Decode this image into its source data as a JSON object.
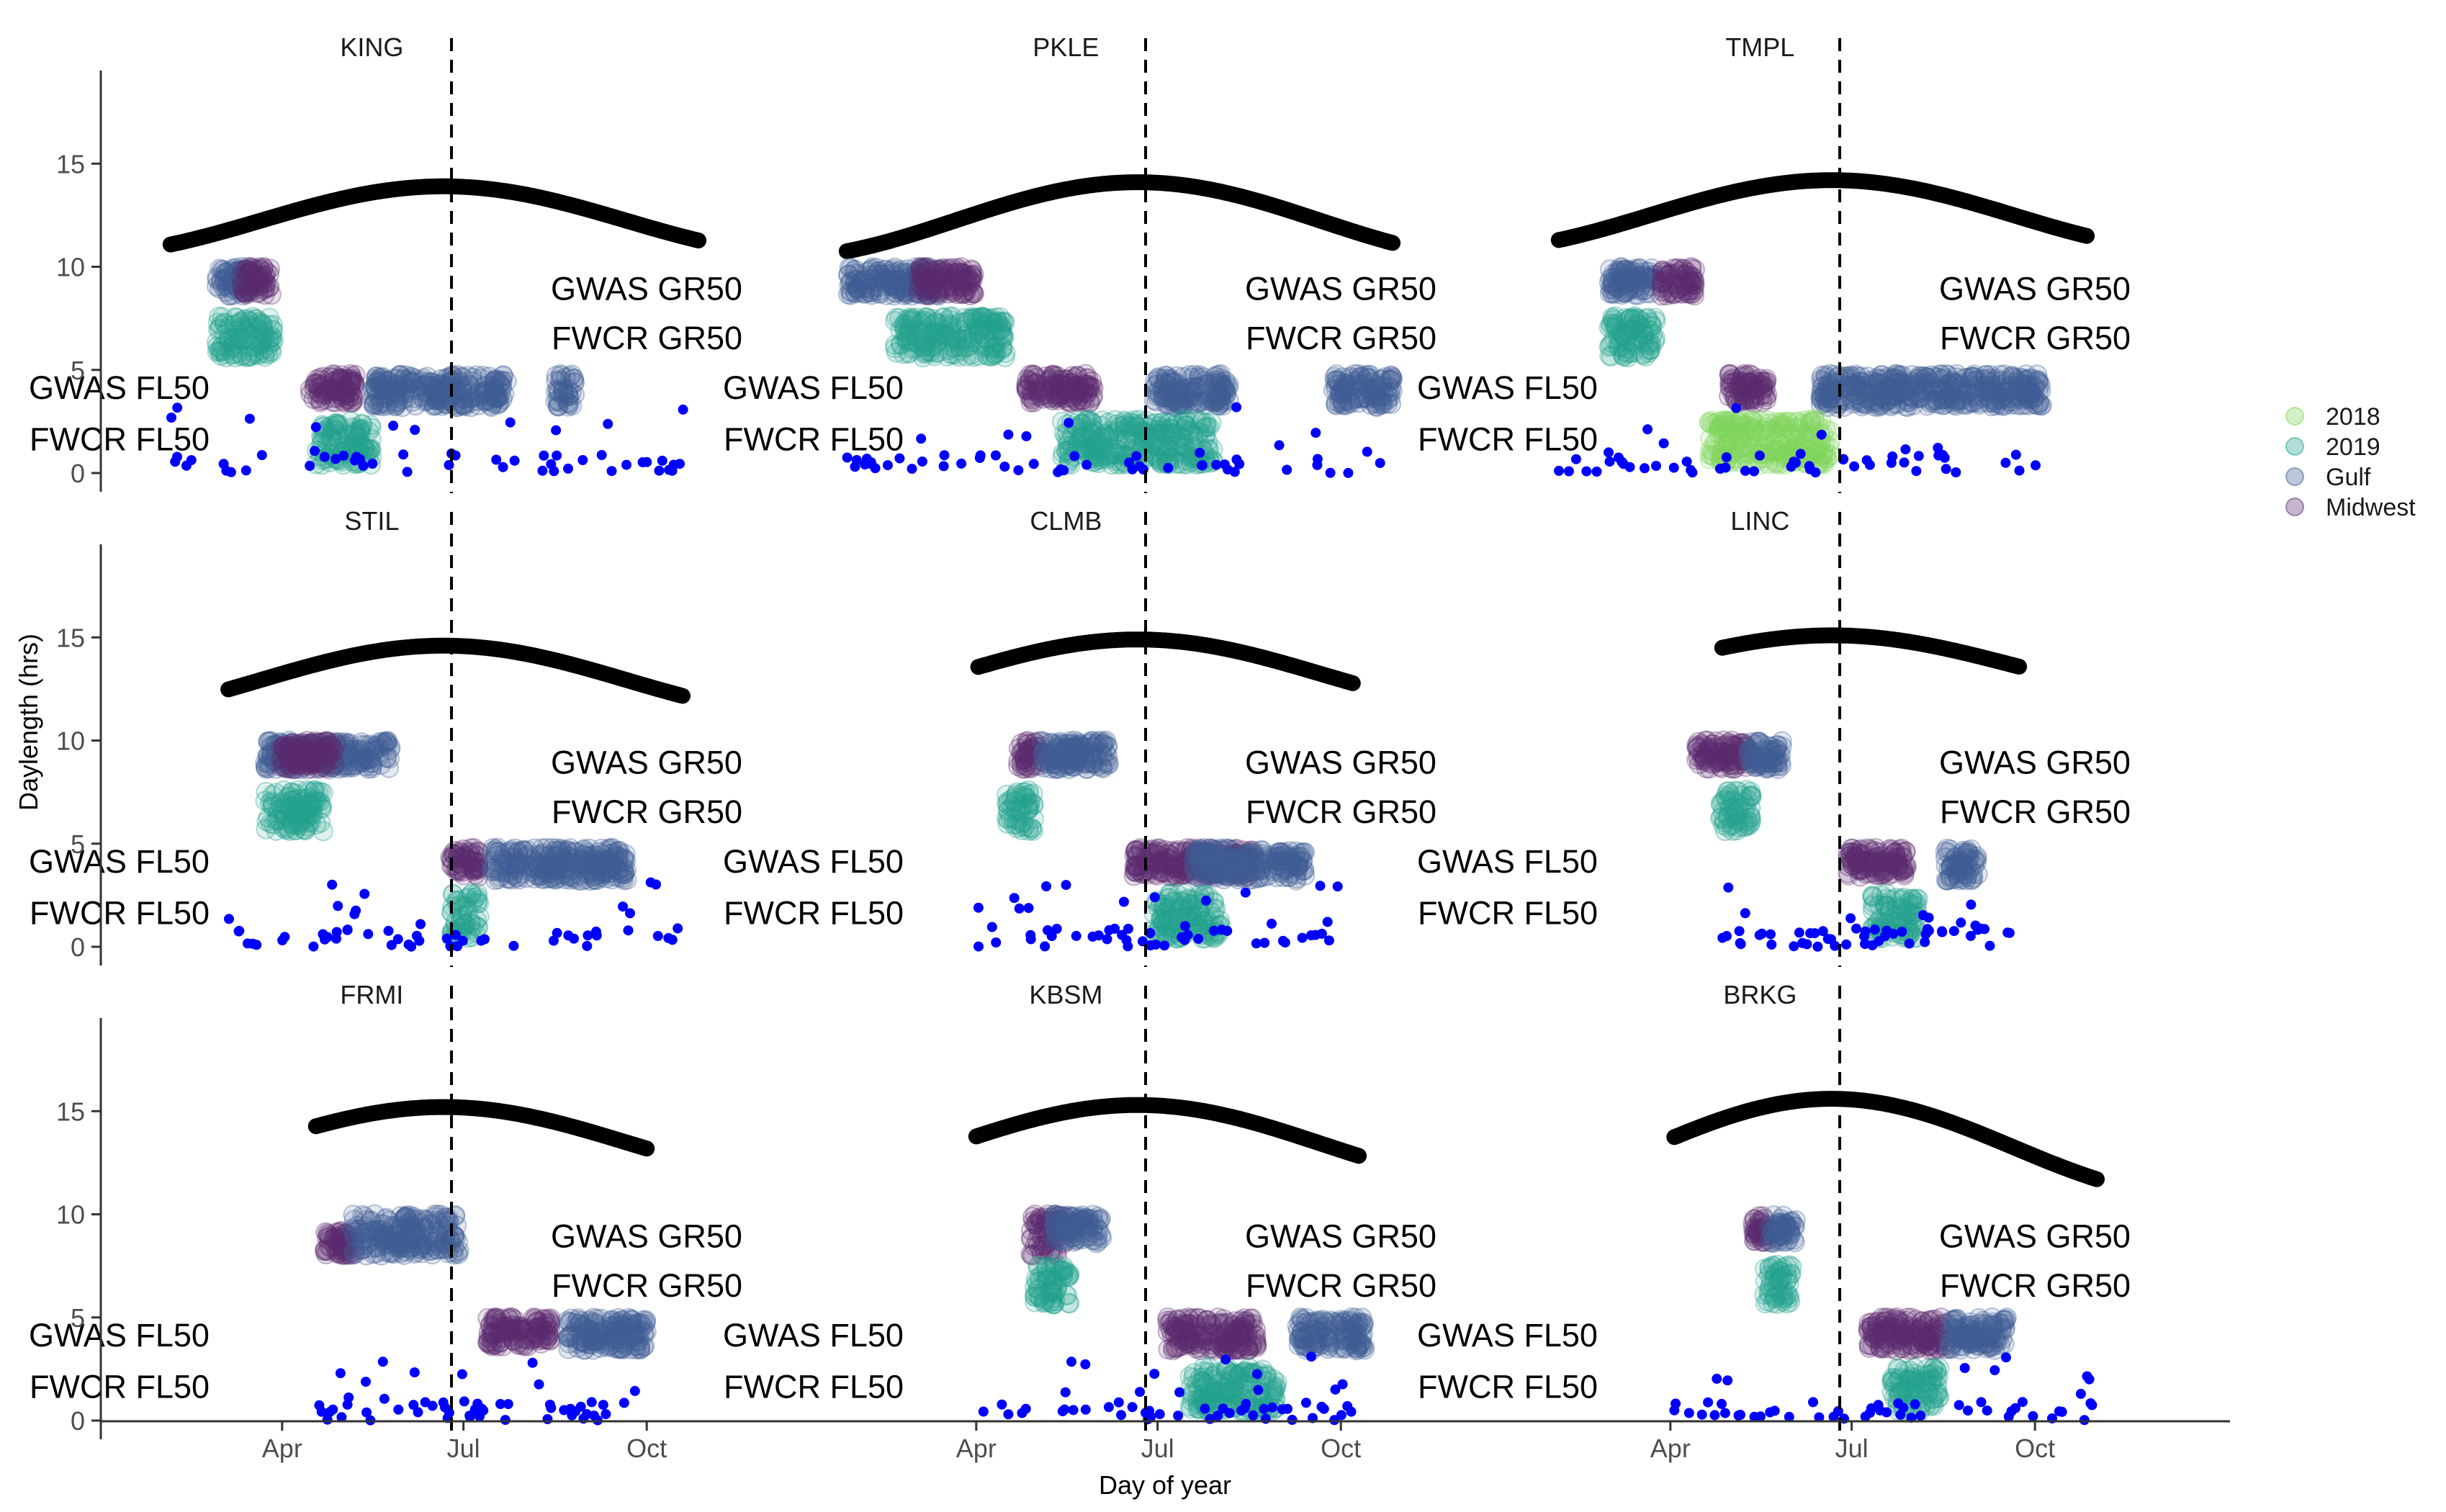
{
  "chart_data": {
    "type": "scatter",
    "xlabel": "Day of year",
    "ylabel": "Daylength (hrs)",
    "x_ticks": [
      "Apr",
      "Jul",
      "Oct"
    ],
    "y_ticks": [
      "0",
      "5",
      "10",
      "15"
    ],
    "ylim": [
      0,
      17
    ],
    "x_tick_days": [
      91,
      182,
      274
    ],
    "xlim": [
      0,
      365
    ],
    "facet_reference_line_day": 176,
    "annotations": [
      "GWAS GR50",
      "FWCR GR50",
      "GWAS FL50",
      "FWCR FL50"
    ],
    "legend": {
      "position": "right",
      "entries": [
        {
          "name": "2018",
          "color": "#7fd75a"
        },
        {
          "name": "2019",
          "color": "#23a08c"
        },
        {
          "name": "Gulf",
          "color": "#3f5f95"
        },
        {
          "name": "Midwest",
          "color": "#5b2a6e"
        }
      ]
    },
    "colors": {
      "daylength_curve": "#000000",
      "daily_points": "#0000ff",
      "reference_line": "#000000"
    },
    "facets": [
      {
        "name": "KING",
        "daylength": {
          "start_day": 35,
          "end_day": 300,
          "min_hrs": 10.6,
          "max_hrs": 13.9
        },
        "gr50": [
          {
            "group": "Gulf",
            "x": [
              58,
              78
            ],
            "y": [
              8.6,
              10.0
            ]
          },
          {
            "group": "Midwest",
            "x": [
              70,
              86
            ],
            "y": [
              8.6,
              10.0
            ]
          },
          {
            "group": "2019",
            "x": [
              58,
              87
            ],
            "y": [
              5.6,
              7.6
            ]
          }
        ],
        "fl50": [
          {
            "group": "Midwest",
            "x": [
              105,
              128
            ],
            "y": [
              3.4,
              4.8
            ]
          },
          {
            "group": "Gulf",
            "x": [
              136,
              204
            ],
            "y": [
              3.2,
              4.8
            ]
          },
          {
            "group": "Gulf",
            "x": [
              228,
              238
            ],
            "y": [
              3.2,
              4.8
            ]
          },
          {
            "group": "2019",
            "x": [
              108,
              136
            ],
            "y": [
              0.4,
              2.6
            ]
          }
        ]
      },
      {
        "name": "PKLE",
        "daylength": {
          "start_day": 26,
          "end_day": 300,
          "min_hrs": 10.4,
          "max_hrs": 14.1
        },
        "gr50": [
          {
            "group": "Gulf",
            "x": [
              26,
              74
            ],
            "y": [
              8.6,
              10.0
            ]
          },
          {
            "group": "Midwest",
            "x": [
              62,
              90
            ],
            "y": [
              8.6,
              10.0
            ]
          },
          {
            "group": "2019",
            "x": [
              50,
              106
            ],
            "y": [
              5.6,
              7.6
            ]
          }
        ],
        "fl50": [
          {
            "group": "Midwest",
            "x": [
              116,
              150
            ],
            "y": [
              3.4,
              4.8
            ]
          },
          {
            "group": "Gulf",
            "x": [
              180,
              218
            ],
            "y": [
              3.2,
              4.8
            ]
          },
          {
            "group": "Gulf",
            "x": [
              270,
              300
            ],
            "y": [
              3.2,
              4.8
            ]
          },
          {
            "group": "2019",
            "x": [
              134,
              210
            ],
            "y": [
              0.4,
              2.6
            ]
          }
        ]
      },
      {
        "name": "TMPL",
        "daylength": {
          "start_day": 35,
          "end_day": 300,
          "min_hrs": 10.8,
          "max_hrs": 14.2
        },
        "gr50": [
          {
            "group": "Gulf",
            "x": [
              60,
              84
            ],
            "y": [
              8.6,
              10.0
            ]
          },
          {
            "group": "Midwest",
            "x": [
              86,
              104
            ],
            "y": [
              8.6,
              10.0
            ]
          },
          {
            "group": "2019",
            "x": [
              60,
              84
            ],
            "y": [
              5.6,
              7.6
            ]
          }
        ],
        "fl50": [
          {
            "group": "Midwest",
            "x": [
              120,
              140
            ],
            "y": [
              3.4,
              4.8
            ]
          },
          {
            "group": "Gulf",
            "x": [
              166,
              278
            ],
            "y": [
              3.2,
              4.8
            ]
          },
          {
            "group": "2018",
            "x": [
              110,
              172
            ],
            "y": [
              0.4,
              2.6
            ]
          }
        ]
      },
      {
        "name": "STIL",
        "daylength": {
          "start_day": 64,
          "end_day": 292,
          "min_hrs": 11.3,
          "max_hrs": 14.6
        },
        "gr50": [
          {
            "group": "Gulf",
            "x": [
              82,
              146
            ],
            "y": [
              8.6,
              10.0
            ]
          },
          {
            "group": "Midwest",
            "x": [
              90,
              118
            ],
            "y": [
              8.6,
              10.0
            ]
          },
          {
            "group": "2019",
            "x": [
              82,
              112
            ],
            "y": [
              5.6,
              7.6
            ]
          }
        ],
        "fl50": [
          {
            "group": "Midwest",
            "x": [
              175,
              190
            ],
            "y": [
              3.4,
              4.8
            ]
          },
          {
            "group": "Gulf",
            "x": [
              196,
              264
            ],
            "y": [
              3.2,
              4.8
            ]
          },
          {
            "group": "2019",
            "x": [
              176,
              190
            ],
            "y": [
              0.4,
              2.6
            ]
          }
        ]
      },
      {
        "name": "CLMB",
        "daylength": {
          "start_day": 92,
          "end_day": 280,
          "min_hrs": 11.6,
          "max_hrs": 14.9
        },
        "gr50": [
          {
            "group": "Midwest",
            "x": [
              112,
              124
            ],
            "y": [
              8.6,
              10.0
            ]
          },
          {
            "group": "Gulf",
            "x": [
              124,
              158
            ],
            "y": [
              8.6,
              10.0
            ]
          },
          {
            "group": "2019",
            "x": [
              106,
              120
            ],
            "y": [
              5.6,
              7.6
            ]
          }
        ],
        "fl50": [
          {
            "group": "Midwest",
            "x": [
              170,
              230
            ],
            "y": [
              3.4,
              4.8
            ]
          },
          {
            "group": "Gulf",
            "x": [
              200,
              256
            ],
            "y": [
              3.2,
              4.8
            ]
          },
          {
            "group": "2019",
            "x": [
              180,
              214
            ],
            "y": [
              0.4,
              2.6
            ]
          }
        ]
      },
      {
        "name": "LINC",
        "daylength": {
          "start_day": 117,
          "end_day": 266,
          "min_hrs": 12.2,
          "max_hrs": 15.1
        },
        "gr50": [
          {
            "group": "Midwest",
            "x": [
              104,
              130
            ],
            "y": [
              8.6,
              10.0
            ]
          },
          {
            "group": "Gulf",
            "x": [
              130,
              148
            ],
            "y": [
              8.6,
              10.0
            ]
          },
          {
            "group": "2019",
            "x": [
              116,
              132
            ],
            "y": [
              5.6,
              7.6
            ]
          }
        ],
        "fl50": [
          {
            "group": "Midwest",
            "x": [
              180,
              210
            ],
            "y": [
              3.4,
              4.8
            ]
          },
          {
            "group": "Gulf",
            "x": [
              228,
              246
            ],
            "y": [
              3.2,
              4.8
            ]
          },
          {
            "group": "2019",
            "x": [
              192,
              216
            ],
            "y": [
              0.4,
              2.6
            ]
          }
        ]
      },
      {
        "name": "FRMI",
        "daylength": {
          "start_day": 108,
          "end_day": 274,
          "min_hrs": 11.8,
          "max_hrs": 15.2
        },
        "gr50": [
          {
            "group": "Midwest",
            "x": [
              112,
              128
            ],
            "y": [
              8.0,
              9.2
            ]
          },
          {
            "group": "Gulf",
            "x": [
              126,
              180
            ],
            "y": [
              8.0,
              10.0
            ]
          }
        ],
        "fl50": [
          {
            "group": "Midwest",
            "x": [
              194,
              226
            ],
            "y": [
              3.6,
              5.0
            ]
          },
          {
            "group": "Gulf",
            "x": [
              234,
              274
            ],
            "y": [
              3.4,
              5.0
            ]
          }
        ]
      },
      {
        "name": "KBSM",
        "daylength": {
          "start_day": 91,
          "end_day": 283,
          "min_hrs": 11.6,
          "max_hrs": 15.3
        },
        "gr50": [
          {
            "group": "Midwest",
            "x": [
              118,
              136
            ],
            "y": [
              8.0,
              10.0
            ]
          },
          {
            "group": "Gulf",
            "x": [
              130,
              154
            ],
            "y": [
              8.6,
              10.0
            ]
          },
          {
            "group": "2019",
            "x": [
              120,
              138
            ],
            "y": [
              5.6,
              7.6
            ]
          }
        ],
        "fl50": [
          {
            "group": "Midwest",
            "x": [
              186,
              232
            ],
            "y": [
              3.4,
              5.0
            ]
          },
          {
            "group": "Gulf",
            "x": [
              252,
              286
            ],
            "y": [
              3.4,
              5.0
            ]
          },
          {
            "group": "2019",
            "x": [
              198,
              242
            ],
            "y": [
              0.4,
              2.6
            ]
          }
        ]
      },
      {
        "name": "BRKG",
        "daylength": {
          "start_day": 93,
          "end_day": 305,
          "min_hrs": 10.9,
          "max_hrs": 15.6
        },
        "gr50": [
          {
            "group": "Midwest",
            "x": [
              132,
              140
            ],
            "y": [
              8.6,
              10.0
            ]
          },
          {
            "group": "Gulf",
            "x": [
              140,
              154
            ],
            "y": [
              8.6,
              10.0
            ]
          },
          {
            "group": "2019",
            "x": [
              138,
              152
            ],
            "y": [
              5.6,
              7.6
            ]
          }
        ],
        "fl50": [
          {
            "group": "Midwest",
            "x": [
              190,
              230
            ],
            "y": [
              3.4,
              5.0
            ]
          },
          {
            "group": "Gulf",
            "x": [
              230,
              260
            ],
            "y": [
              3.4,
              5.0
            ]
          },
          {
            "group": "2019",
            "x": [
              202,
              226
            ],
            "y": [
              0.4,
              2.6
            ]
          }
        ]
      }
    ]
  }
}
